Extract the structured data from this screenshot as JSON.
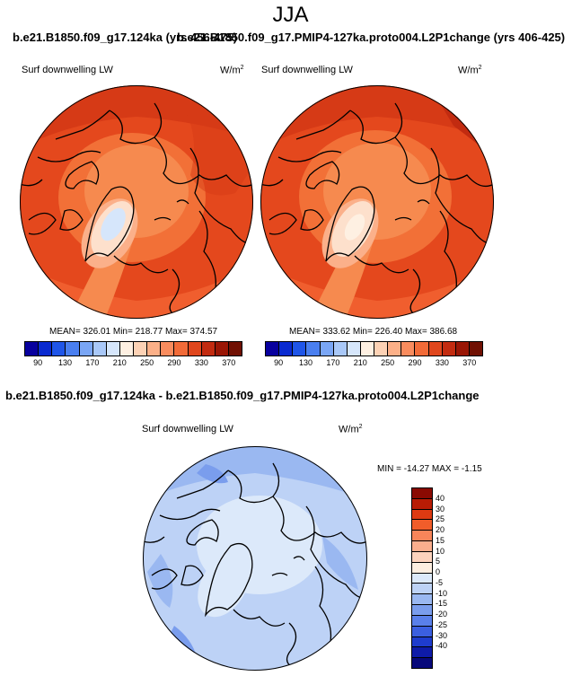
{
  "title": "JJA",
  "top_titles": {
    "left": "b.e21.B1850.f09_g17.124ka (yrs 456-475)",
    "right": "b.e21.B1850.f09_g17.PMIP4-127ka.proto004.L2P1change (yrs 406-425)"
  },
  "panels": [
    {
      "label": "Surf downwelling LW",
      "units_base": "W/m",
      "units_exp": "2",
      "stats": "MEAN= 326.01  Min= 218.77  Max= 374.57"
    },
    {
      "label": "Surf downwelling LW",
      "units_base": "W/m",
      "units_exp": "2",
      "stats": "MEAN= 333.62  Min= 226.40  Max= 386.68"
    }
  ],
  "abs_colorbar": {
    "colors": [
      "#08009e",
      "#0a2ad0",
      "#1f55e8",
      "#4a7ff0",
      "#7aa6f5",
      "#a9c8f8",
      "#d6e6fb",
      "#fef0e2",
      "#fdd2b5",
      "#fcb088",
      "#f98c5e",
      "#f26b38",
      "#e0471d",
      "#c22b10",
      "#9a1605",
      "#701003"
    ],
    "labels": [
      "90",
      "130",
      "170",
      "210",
      "250",
      "290",
      "330",
      "370"
    ]
  },
  "diff": {
    "title": "b.e21.B1850.f09_g17.124ka - b.e21.B1850.f09_g17.PMIP4-127ka.proto004.L2P1change",
    "label": "Surf downwelling LW",
    "units_base": "W/m",
    "units_exp": "2",
    "minmax": "MIN = -14.27  MAX =  -1.15",
    "colorbar": {
      "colors": [
        "#8a0a02",
        "#b81c05",
        "#dd3a12",
        "#f15d2a",
        "#f8855a",
        "#fbae8d",
        "#fdd3bd",
        "#fdeee0",
        "#dce9fa",
        "#bdd2f6",
        "#9ab8f1",
        "#7a9ded",
        "#5a80ea",
        "#3b5fe0",
        "#1e3ccd",
        "#0e1ba8",
        "#07087a"
      ],
      "labels": [
        "40",
        "30",
        "25",
        "20",
        "15",
        "10",
        "5",
        "0",
        "-5",
        "-10",
        "-15",
        "-20",
        "-25",
        "-30",
        "-40"
      ]
    }
  }
}
